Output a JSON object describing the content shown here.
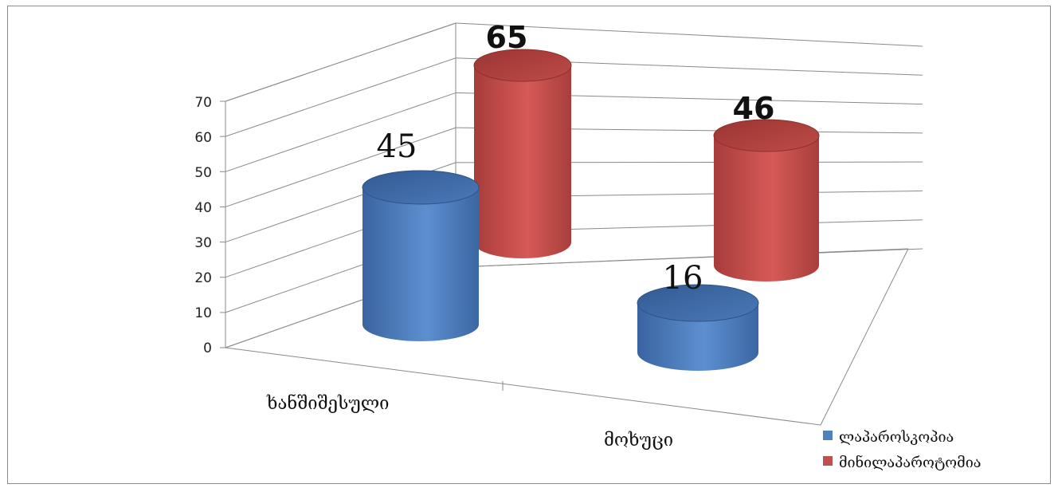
{
  "chart_data": {
    "type": "bar",
    "style": "3d-cylinder",
    "categories": [
      "ხანშიშესული",
      "მოხუცი"
    ],
    "series": [
      {
        "name": "ლაპაროსკოპია",
        "values": [
          45,
          16
        ],
        "color": "#4f81bd"
      },
      {
        "name": "მინილაპაროტომია",
        "values": [
          65,
          46
        ],
        "color": "#c0504d"
      }
    ],
    "data_labels": [
      "45",
      "16",
      "65",
      "46"
    ],
    "ylim": [
      0,
      70
    ],
    "yticks": [
      "0",
      "10",
      "20",
      "30",
      "40",
      "50",
      "60",
      "70"
    ],
    "grid": true,
    "legend": "bottom-right"
  }
}
